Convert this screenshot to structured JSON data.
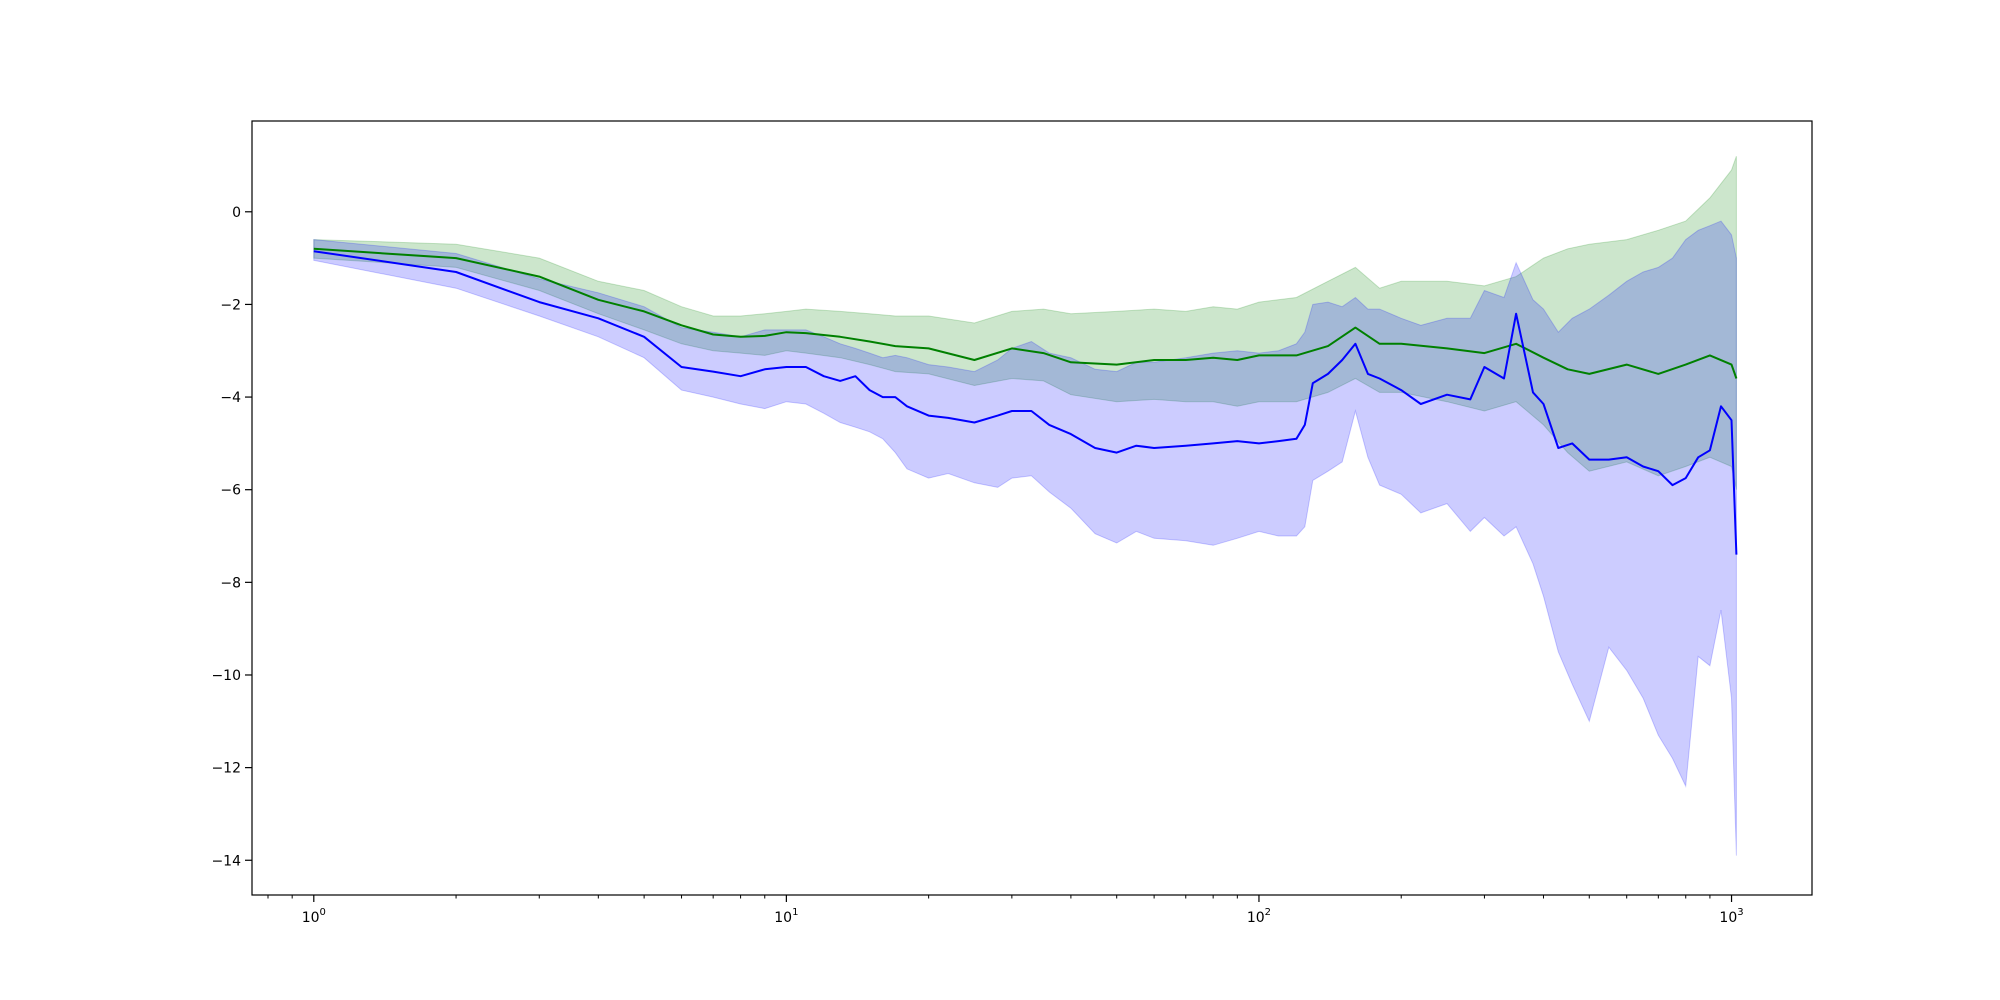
{
  "chart_data": {
    "type": "line",
    "title": "",
    "xlabel": "",
    "ylabel": "",
    "xscale": "log",
    "xlim": [
      0.74,
      1480
    ],
    "ylim": [
      -14.75,
      1.96
    ],
    "grid": false,
    "legend": "none",
    "x_ticks": [
      {
        "value": 1,
        "base": "10",
        "exp": "0"
      },
      {
        "value": 10,
        "base": "10",
        "exp": "1"
      },
      {
        "value": 100,
        "base": "10",
        "exp": "2"
      },
      {
        "value": 1000,
        "base": "10",
        "exp": "3"
      }
    ],
    "y_ticks": [
      {
        "value": 0,
        "label": "0"
      },
      {
        "value": -2,
        "label": "−2"
      },
      {
        "value": -4,
        "label": "−4"
      },
      {
        "value": -6,
        "label": "−6"
      },
      {
        "value": -8,
        "label": "−8"
      },
      {
        "value": -10,
        "label": "−10"
      },
      {
        "value": -12,
        "label": "−12"
      },
      {
        "value": -14,
        "label": "−14"
      }
    ],
    "series": [
      {
        "color": "#008000",
        "band_color": "#008000",
        "band_opacity": 0.2,
        "x": [
          1,
          2,
          3,
          4,
          5,
          6,
          7,
          8,
          9,
          10,
          11,
          13,
          15,
          17,
          20,
          25,
          30,
          35,
          40,
          50,
          60,
          70,
          80,
          90,
          100,
          120,
          140,
          160,
          180,
          200,
          250,
          300,
          350,
          400,
          450,
          500,
          600,
          700,
          800,
          900,
          1000,
          1024
        ],
        "y": [
          -0.8,
          -1.0,
          -1.4,
          -1.9,
          -2.15,
          -2.45,
          -2.65,
          -2.7,
          -2.68,
          -2.6,
          -2.62,
          -2.7,
          -2.8,
          -2.9,
          -2.95,
          -3.2,
          -2.95,
          -3.05,
          -3.25,
          -3.3,
          -3.2,
          -3.2,
          -3.15,
          -3.2,
          -3.1,
          -3.1,
          -2.9,
          -2.5,
          -2.85,
          -2.85,
          -2.95,
          -3.05,
          -2.85,
          -3.15,
          -3.4,
          -3.5,
          -3.3,
          -3.5,
          -3.3,
          -3.1,
          -3.3,
          -3.6
        ],
        "upper": [
          -0.6,
          -0.7,
          -1.0,
          -1.5,
          -1.7,
          -2.05,
          -2.25,
          -2.25,
          -2.2,
          -2.15,
          -2.1,
          -2.15,
          -2.2,
          -2.25,
          -2.25,
          -2.4,
          -2.15,
          -2.1,
          -2.2,
          -2.15,
          -2.1,
          -2.15,
          -2.05,
          -2.1,
          -1.95,
          -1.85,
          -1.5,
          -1.2,
          -1.65,
          -1.5,
          -1.5,
          -1.6,
          -1.4,
          -1.0,
          -0.8,
          -0.7,
          -0.6,
          -0.4,
          -0.2,
          0.3,
          0.9,
          1.2
        ],
        "lower": [
          -1.0,
          -1.2,
          -1.7,
          -2.2,
          -2.55,
          -2.85,
          -3.0,
          -3.05,
          -3.1,
          -3.0,
          -3.05,
          -3.15,
          -3.3,
          -3.45,
          -3.5,
          -3.75,
          -3.6,
          -3.65,
          -3.95,
          -4.1,
          -4.05,
          -4.1,
          -4.1,
          -4.2,
          -4.1,
          -4.1,
          -3.9,
          -3.6,
          -3.9,
          -3.9,
          -4.1,
          -4.3,
          -4.1,
          -4.6,
          -5.2,
          -5.6,
          -5.4,
          -5.7,
          -5.5,
          -5.3,
          -5.5,
          -6.0
        ]
      },
      {
        "color": "#0000ff",
        "band_color": "#0000ff",
        "band_opacity": 0.2,
        "x": [
          1,
          2,
          3,
          4,
          5,
          6,
          7,
          8,
          9,
          10,
          11,
          12,
          13,
          14,
          15,
          16,
          17,
          18,
          20,
          22,
          25,
          28,
          30,
          33,
          36,
          40,
          45,
          50,
          55,
          60,
          70,
          80,
          90,
          100,
          110,
          120,
          125,
          130,
          140,
          150,
          160,
          170,
          180,
          200,
          220,
          250,
          280,
          300,
          330,
          350,
          380,
          400,
          430,
          460,
          500,
          550,
          600,
          650,
          700,
          750,
          800,
          850,
          900,
          950,
          1000,
          1024
        ],
        "y": [
          -0.85,
          -1.3,
          -1.95,
          -2.3,
          -2.7,
          -3.35,
          -3.45,
          -3.55,
          -3.4,
          -3.35,
          -3.35,
          -3.55,
          -3.65,
          -3.55,
          -3.85,
          -4.0,
          -4.0,
          -4.2,
          -4.4,
          -4.45,
          -4.55,
          -4.4,
          -4.3,
          -4.3,
          -4.6,
          -4.8,
          -5.1,
          -5.2,
          -5.05,
          -5.1,
          -5.05,
          -5.0,
          -4.95,
          -5.0,
          -4.95,
          -4.9,
          -4.6,
          -3.7,
          -3.5,
          -3.2,
          -2.85,
          -3.5,
          -3.6,
          -3.85,
          -4.15,
          -3.95,
          -4.05,
          -3.35,
          -3.6,
          -2.2,
          -3.9,
          -4.15,
          -5.1,
          -5.0,
          -5.35,
          -5.35,
          -5.3,
          -5.5,
          -5.6,
          -5.9,
          -5.75,
          -5.3,
          -5.15,
          -4.2,
          -4.5,
          -7.4
        ],
        "upper": [
          -0.6,
          -0.9,
          -1.45,
          -1.75,
          -2.05,
          -2.5,
          -2.6,
          -2.7,
          -2.55,
          -2.55,
          -2.55,
          -2.7,
          -2.85,
          -2.95,
          -3.05,
          -3.15,
          -3.1,
          -3.15,
          -3.3,
          -3.35,
          -3.45,
          -3.2,
          -2.95,
          -2.8,
          -3.05,
          -3.15,
          -3.4,
          -3.45,
          -3.25,
          -3.25,
          -3.15,
          -3.05,
          -3.0,
          -3.05,
          -3.0,
          -2.85,
          -2.6,
          -2.0,
          -1.95,
          -2.05,
          -1.85,
          -2.1,
          -2.1,
          -2.3,
          -2.45,
          -2.3,
          -2.3,
          -1.7,
          -1.85,
          -1.1,
          -1.9,
          -2.1,
          -2.6,
          -2.3,
          -2.1,
          -1.8,
          -1.5,
          -1.3,
          -1.2,
          -1.0,
          -0.6,
          -0.4,
          -0.3,
          -0.2,
          -0.5,
          -1.0
        ],
        "lower": [
          -1.05,
          -1.65,
          -2.25,
          -2.7,
          -3.15,
          -3.85,
          -4.0,
          -4.15,
          -4.25,
          -4.1,
          -4.15,
          -4.35,
          -4.55,
          -4.65,
          -4.75,
          -4.9,
          -5.2,
          -5.55,
          -5.75,
          -5.65,
          -5.85,
          -5.95,
          -5.75,
          -5.7,
          -6.05,
          -6.4,
          -6.95,
          -7.15,
          -6.9,
          -7.05,
          -7.1,
          -7.2,
          -7.05,
          -6.9,
          -7.0,
          -7.0,
          -6.8,
          -5.8,
          -5.6,
          -5.4,
          -4.3,
          -5.3,
          -5.9,
          -6.1,
          -6.5,
          -6.3,
          -6.9,
          -6.6,
          -7.0,
          -6.8,
          -7.6,
          -8.3,
          -9.5,
          -10.2,
          -11.0,
          -9.4,
          -9.9,
          -10.5,
          -11.3,
          -11.8,
          -12.4,
          -9.6,
          -9.8,
          -8.6,
          -10.5,
          -13.9
        ]
      }
    ]
  }
}
